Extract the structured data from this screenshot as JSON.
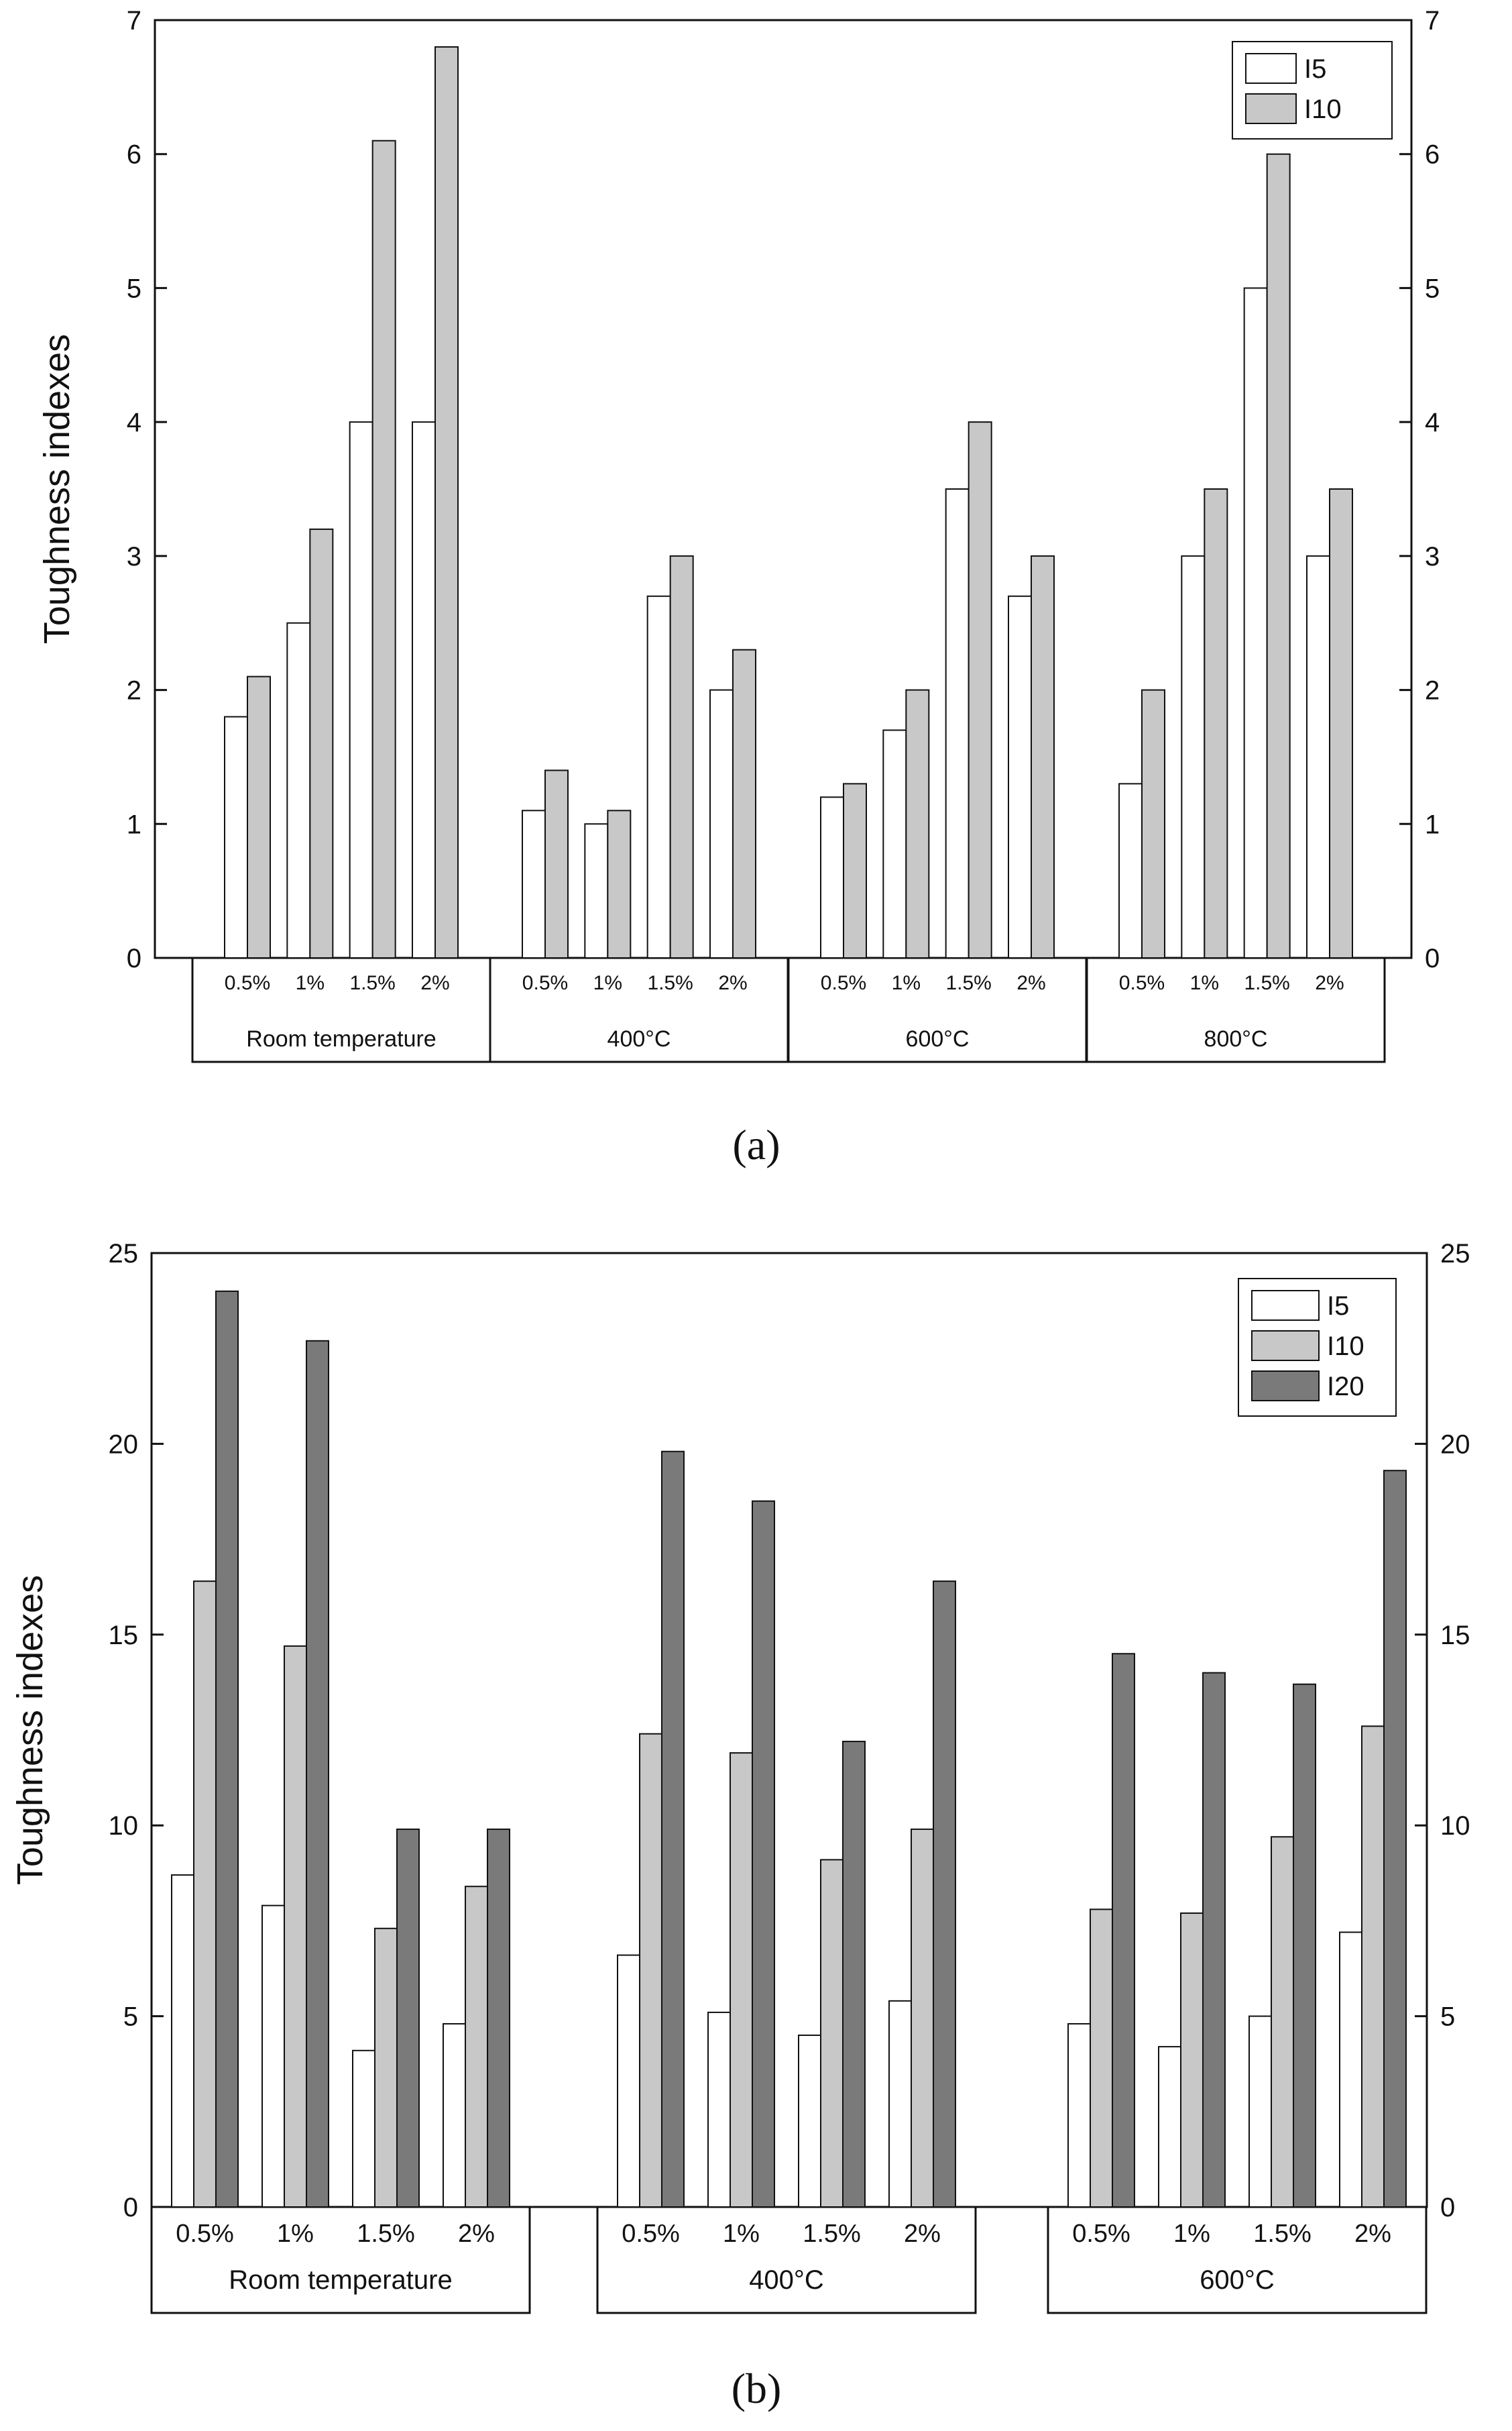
{
  "chart_data": [
    {
      "type": "bar",
      "panel_label": "(a)",
      "ylabel": "Toughness indexes",
      "ylim": [
        0,
        7
      ],
      "yticks": [
        0,
        1,
        2,
        3,
        4,
        5,
        6,
        7
      ],
      "groups": [
        "Room temperature",
        "400°C",
        "600°C",
        "800°C"
      ],
      "categories": [
        "0.5%",
        "1%",
        "1.5%",
        "2%"
      ],
      "series": [
        {
          "name": "I5",
          "color": "#ffffff",
          "values": [
            [
              1.8,
              2.5,
              4.0,
              4.0
            ],
            [
              1.1,
              1.0,
              2.7,
              2.0
            ],
            [
              1.2,
              1.7,
              3.5,
              2.7
            ],
            [
              1.3,
              3.0,
              5.0,
              3.0
            ]
          ]
        },
        {
          "name": "I10",
          "color": "#c8c8c8",
          "values": [
            [
              2.1,
              3.2,
              6.1,
              6.8
            ],
            [
              1.4,
              1.1,
              3.0,
              2.3
            ],
            [
              1.3,
              2.0,
              4.0,
              3.0
            ],
            [
              2.0,
              3.5,
              6.0,
              3.5
            ]
          ]
        }
      ],
      "legend": "top-right",
      "grid": false
    },
    {
      "type": "bar",
      "panel_label": "(b)",
      "ylabel": "Toughness indexes",
      "ylim": [
        0,
        25
      ],
      "yticks": [
        0,
        5,
        10,
        15,
        20,
        25
      ],
      "groups": [
        "Room temperature",
        "400°C",
        "600°C"
      ],
      "categories": [
        "0.5%",
        "1%",
        "1.5%",
        "2%"
      ],
      "series": [
        {
          "name": "I5",
          "color": "#ffffff",
          "values": [
            [
              8.7,
              7.9,
              4.1,
              4.8
            ],
            [
              6.6,
              5.1,
              4.5,
              5.4
            ],
            [
              4.8,
              4.2,
              5.0,
              7.2
            ]
          ]
        },
        {
          "name": "I10",
          "color": "#c8c8c8",
          "values": [
            [
              16.4,
              14.7,
              7.3,
              8.4
            ],
            [
              12.4,
              11.9,
              9.1,
              9.9
            ],
            [
              7.8,
              7.7,
              9.7,
              12.6
            ]
          ]
        },
        {
          "name": "I20",
          "color": "#7a7a7a",
          "values": [
            [
              24.0,
              22.7,
              9.9,
              9.9
            ],
            [
              19.8,
              18.5,
              12.2,
              16.4
            ],
            [
              14.5,
              14.0,
              13.7,
              19.3
            ]
          ]
        }
      ],
      "legend": "top-right",
      "grid": false
    }
  ]
}
